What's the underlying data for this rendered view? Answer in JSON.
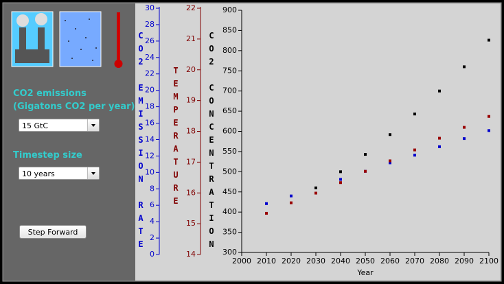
{
  "controls": {
    "emissions_label": "CO2 emissions",
    "emissions_units": "(Gigatons CO2 per year)",
    "emissions_select": "15 GtC",
    "timestep_label": "Timestep size",
    "timestep_select": "10 years",
    "step_button": "Step Forward"
  },
  "chart_data": {
    "type": "scatter",
    "x_label": "Year",
    "y_label": "CO2 CONCENTRATION",
    "x": [
      2010,
      2020,
      2030,
      2040,
      2050,
      2060,
      2070,
      2080,
      2090,
      2100
    ],
    "xlim": [
      2000,
      2100
    ],
    "xticks": [
      2000,
      2010,
      2020,
      2030,
      2040,
      2050,
      2060,
      2070,
      2080,
      2090,
      2100
    ],
    "ylim": [
      300,
      900
    ],
    "yticks": [
      300,
      350,
      400,
      450,
      500,
      550,
      600,
      650,
      700,
      750,
      800,
      850,
      900
    ],
    "series": [
      {
        "color": "#000000",
        "values": [
          null,
          null,
          460,
          500,
          543,
          592,
          643,
          700,
          760,
          826
        ]
      },
      {
        "color": "#0000cc",
        "values": [
          421,
          440,
          null,
          481,
          501,
          522,
          541,
          562,
          582,
          602
        ]
      },
      {
        "color": "#990000",
        "values": [
          397,
          423,
          447,
          473,
          501,
          527,
          554,
          583,
          610,
          637
        ]
      }
    ],
    "emission_axis": {
      "label": "CO2 EMISSION RATE",
      "color": "#0000cc",
      "lim": [
        0,
        30
      ],
      "ticks": [
        0,
        2,
        4,
        6,
        8,
        10,
        12,
        14,
        16,
        18,
        20,
        22,
        24,
        26,
        28,
        30
      ]
    },
    "temperature_axis": {
      "label": "TEMPERATURE",
      "color": "#800000",
      "lim": [
        14,
        22
      ],
      "ticks": [
        14,
        15,
        16,
        17,
        18,
        19,
        20,
        21,
        22
      ]
    }
  }
}
